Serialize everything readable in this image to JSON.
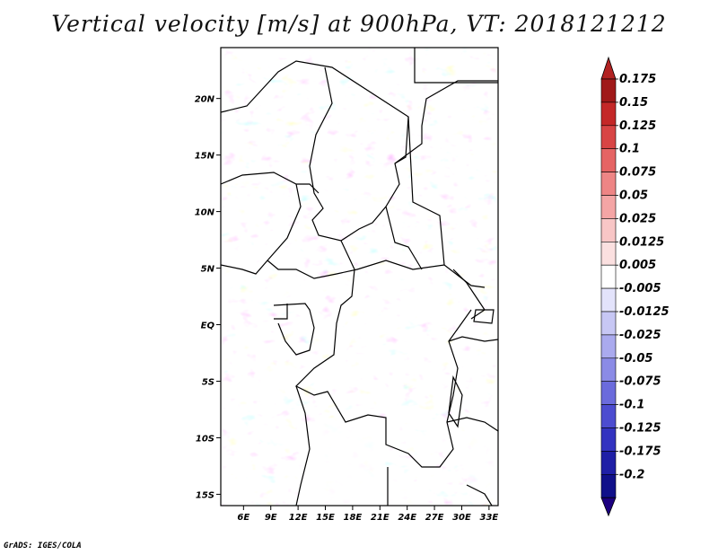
{
  "title": "Vertical velocity [m/s] at 900hPa, VT: 2018121212",
  "footer": "GrADS: IGES/COLA",
  "map": {
    "lon_range": [
      3.5,
      34
    ],
    "lat_range": [
      -16,
      24.5
    ],
    "lat_ticks": [
      {
        "label": "20N",
        "value": 20
      },
      {
        "label": "15N",
        "value": 15
      },
      {
        "label": "10N",
        "value": 10
      },
      {
        "label": "5N",
        "value": 5
      },
      {
        "label": "EQ",
        "value": 0
      },
      {
        "label": "5S",
        "value": -5
      },
      {
        "label": "10S",
        "value": -10
      },
      {
        "label": "15S",
        "value": -15
      }
    ],
    "lon_ticks": [
      {
        "label": "6E",
        "value": 6
      },
      {
        "label": "9E",
        "value": 9
      },
      {
        "label": "12E",
        "value": 12
      },
      {
        "label": "15E",
        "value": 15
      },
      {
        "label": "18E",
        "value": 18
      },
      {
        "label": "21E",
        "value": 21
      },
      {
        "label": "24E",
        "value": 24
      },
      {
        "label": "27E",
        "value": 27
      },
      {
        "label": "30E",
        "value": 30
      },
      {
        "label": "33E",
        "value": 33
      }
    ]
  },
  "colorbar": {
    "levels": [
      "0.175",
      "0.15",
      "0.125",
      "0.1",
      "0.075",
      "0.05",
      "0.025",
      "0.0125",
      "0.005",
      "-0.005",
      "-0.0125",
      "-0.025",
      "-0.05",
      "-0.075",
      "-0.1",
      "-0.125",
      "-0.175",
      "-0.2"
    ],
    "colors": [
      "#a01919",
      "#c42828",
      "#d84545",
      "#e56464",
      "#ee8585",
      "#f4a5a5",
      "#f8c6c6",
      "#fbe0e0",
      "#ffffff",
      "#e3e3fb",
      "#c7c7f4",
      "#aaaaee",
      "#8b8be6",
      "#6b6bdc",
      "#4c4cd0",
      "#3333c0",
      "#1f1fa6",
      "#10108a"
    ],
    "top_arrow_color": "#b22222",
    "bottom_arrow_color": "#1c0080"
  }
}
